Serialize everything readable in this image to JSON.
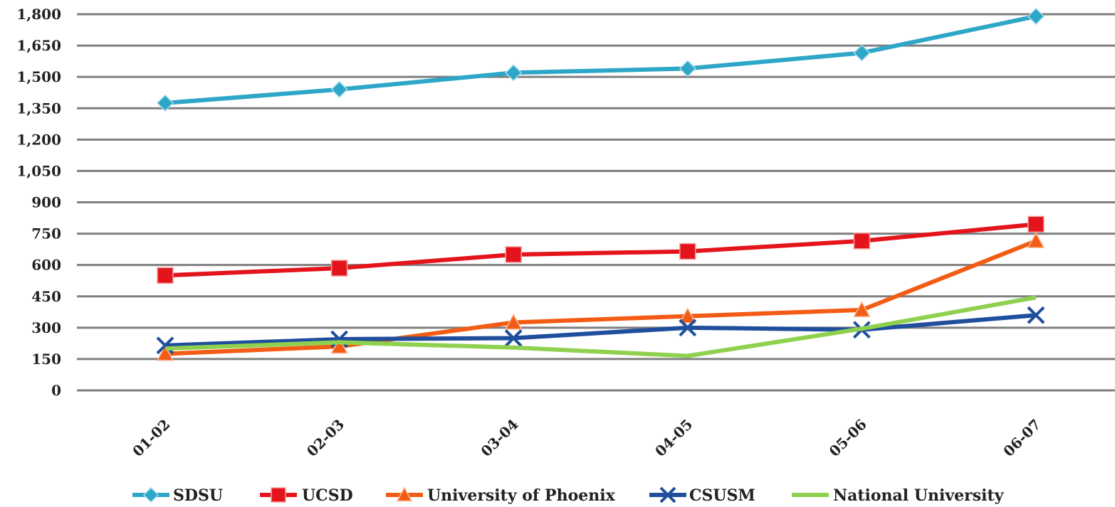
{
  "chart_data": {
    "type": "line",
    "categories": [
      "01-02",
      "02-03",
      "03-04",
      "04-05",
      "05-06",
      "06-07"
    ],
    "yticks": [
      "0",
      "150",
      "300",
      "450",
      "600",
      "750",
      "900",
      "1,050",
      "1,200",
      "1,350",
      "1,500",
      "1,650",
      "1,800"
    ],
    "ylim": [
      0,
      1800
    ],
    "grid": true,
    "legend": "bottom",
    "series": [
      {
        "name": "SDSU",
        "values": [
          1375,
          1440,
          1520,
          1540,
          1615,
          1790
        ],
        "color": "#2da6c8",
        "marker": "diamond"
      },
      {
        "name": "UCSD",
        "values": [
          550,
          585,
          650,
          665,
          715,
          795
        ],
        "color": "#e3141c",
        "marker": "square"
      },
      {
        "name": "University of Phoenix",
        "values": [
          175,
          210,
          325,
          355,
          385,
          715
        ],
        "color": "#f25c14",
        "marker": "triangle"
      },
      {
        "name": "CSUSM",
        "values": [
          215,
          245,
          250,
          300,
          290,
          360
        ],
        "color": "#1f4e9c",
        "marker": "x"
      },
      {
        "name": "National University",
        "values": [
          200,
          230,
          205,
          165,
          295,
          445
        ],
        "color": "#8fd14f",
        "marker": "none"
      }
    ]
  }
}
